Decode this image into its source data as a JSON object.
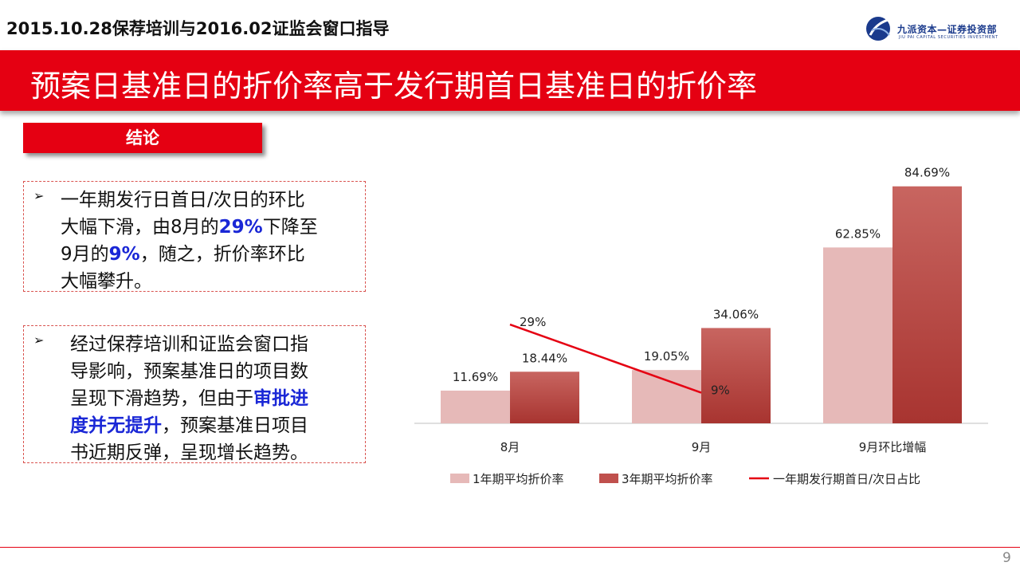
{
  "header": {
    "title": "2015.10.28保荐培训与2016.02证监会窗口指导",
    "logo_cn": "九派资本—证券投资部",
    "logo_en": "JIU PAI CAPITAL   SECURITIES INVESTMENT"
  },
  "banner": {
    "title": "预案日基准日的折价率高于发行期首日基准日的折价率"
  },
  "conclusion": {
    "label": "结论"
  },
  "box1": {
    "bullet": "➢",
    "line1": "一年期发行日首日/次日的环比",
    "line2_a": "大幅下滑，由8月的",
    "line2_hl": "29%",
    "line2_b": "下降至",
    "line3_a": "9月的",
    "line3_hl": "9%",
    "line3_b": "，随之，折价率环比",
    "line4": "大幅攀升。"
  },
  "box2": {
    "bullet": "➢",
    "line1": "经过保荐培训和证监会窗口指",
    "line2": "导影响，预案基准日的项目数",
    "line3_a": "呈现下滑趋势，但由于",
    "line3_hl": "审批进",
    "line4_hl": "度并无提升",
    "line4_b": "，预案基准日项目",
    "line5": "书近期反弹，呈现增长趋势。"
  },
  "chart_data": {
    "type": "bar",
    "categories": [
      "8月",
      "9月",
      "9月环比增幅"
    ],
    "series": [
      {
        "name": "1年期平均折价率",
        "values": [
          11.69,
          19.05,
          62.85
        ],
        "labels": [
          "11.69%",
          "19.05%",
          "62.85%"
        ],
        "color": "#e6b9b8"
      },
      {
        "name": "3年期平均折价率",
        "values": [
          18.44,
          34.06,
          84.69
        ],
        "labels": [
          "18.44%",
          "34.06%",
          "84.69%"
        ],
        "color": "#c0504d"
      }
    ],
    "line_series": {
      "name": "一年期发行期首日/次日占比",
      "categories": [
        "8月",
        "9月"
      ],
      "values": [
        29,
        9
      ],
      "labels": [
        "29%",
        "9%"
      ],
      "color": "#e50012"
    },
    "ylim": [
      0,
      100
    ],
    "grid": false,
    "legend": "bottom"
  },
  "footer": {
    "page": "9"
  }
}
